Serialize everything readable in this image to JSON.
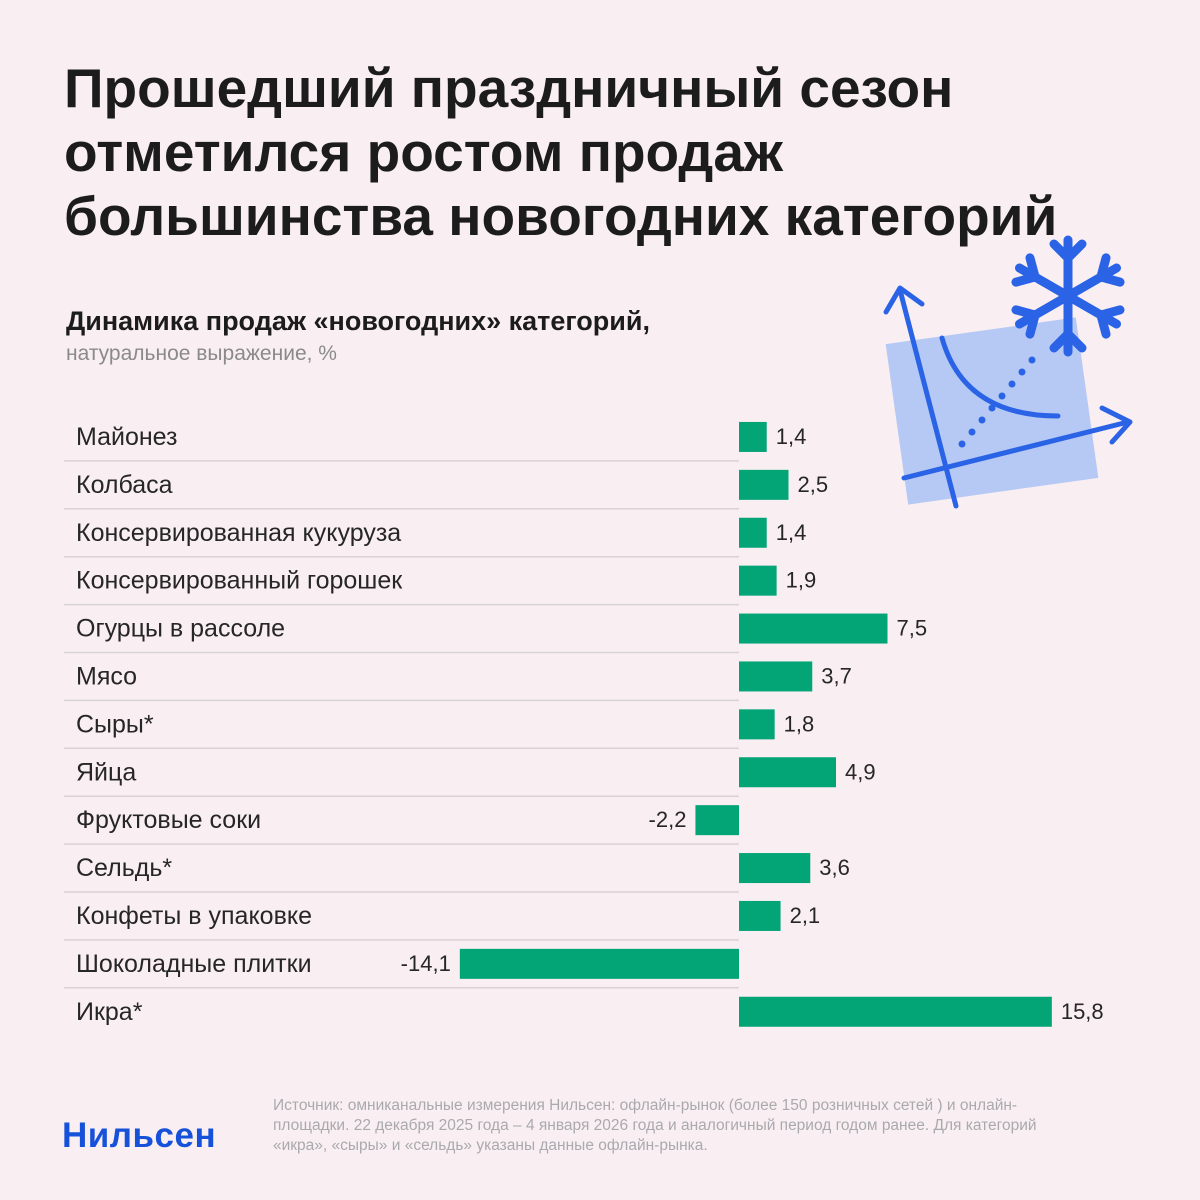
{
  "headline": "Прошедший праздничный сезон отметился ростом продаж большинства новогодних категорий",
  "colors": {
    "background": "#f9eff2",
    "bar": "#03a476",
    "brand": "#1652d9",
    "illustration_line": "#2a63e6",
    "illustration_fill": "#aac2f5"
  },
  "illustration": {
    "icons": [
      "snowflake-icon",
      "axes-curve-icon"
    ]
  },
  "chart_data": {
    "type": "bar",
    "orientation": "horizontal",
    "title": "Динамика продаж «новогодних» категорий,",
    "subtitle": "натуральное выражение, %",
    "categories": [
      "Майонез",
      "Колбаса",
      "Консервированная кукуруза",
      "Консервированный горошек",
      "Огурцы в рассоле",
      "Мясо",
      "Сыры*",
      "Яйца",
      "Фруктовые соки",
      "Сельдь*",
      "Конфеты в упаковке",
      "Шоколадные плитки",
      "Икра*"
    ],
    "values": [
      1.4,
      2.5,
      1.4,
      1.9,
      7.5,
      3.7,
      1.8,
      4.9,
      -2.2,
      3.6,
      2.1,
      -14.1,
      15.8
    ],
    "value_labels": [
      "1,4",
      "2,5",
      "1,4",
      "1,9",
      "7,5",
      "3,7",
      "1,8",
      "4,9",
      "-2,2",
      "3,6",
      "2,1",
      "-14,1",
      "15,8"
    ],
    "xlim": [
      -14.1,
      15.8
    ],
    "grid": false,
    "legend": "none"
  },
  "footer": {
    "logo": "Нильсен",
    "source": "Источник: омниканальные измерения Нильсен: офлайн-рынок (более 150 розничных сетей ) и онлайн-площадки. 22 декабря 2025 года – 4 января 2026 года и аналогичный период годом ранее. Для категорий «икра», «сыры» и «сельдь» указаны данные офлайн-рынка."
  }
}
